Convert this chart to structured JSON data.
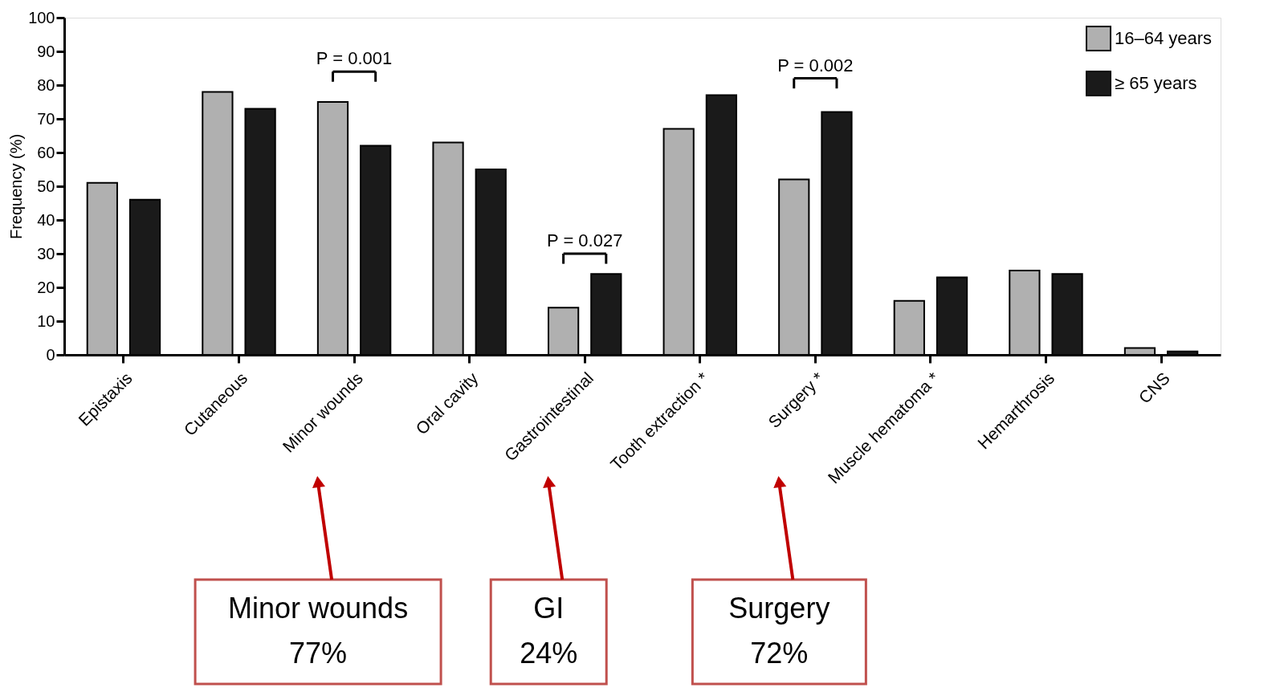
{
  "chart_data": {
    "type": "bar",
    "categories": [
      "Epistaxis",
      "Cutaneous",
      "Minor wounds",
      "Oral cavity",
      "Gastrointestinal",
      "Tooth extraction *",
      "Surgery *",
      "Muscle hematoma *",
      "Hemarthrosis",
      "CNS"
    ],
    "series": [
      {
        "name": "16–64 years",
        "color": "#b0b0b0",
        "values": [
          51,
          78,
          75,
          63,
          14,
          67,
          52,
          16,
          25,
          2
        ]
      },
      {
        "name": "≥ 65 years",
        "color": "#1a1a1a",
        "values": [
          46,
          73,
          62,
          55,
          24,
          77,
          72,
          23,
          24,
          1
        ]
      }
    ],
    "ylabel": "Frequency (%)",
    "ylim": [
      0,
      100
    ],
    "yticks": [
      0,
      10,
      20,
      30,
      40,
      50,
      60,
      70,
      80,
      90,
      100
    ],
    "grid": false,
    "legend": "top right",
    "annotations": [
      "P = 0.001",
      "P = 0.027",
      "P = 0.002",
      "Minor wounds\n77%",
      "GI\n24%",
      "Surgery\n72%"
    ]
  }
}
